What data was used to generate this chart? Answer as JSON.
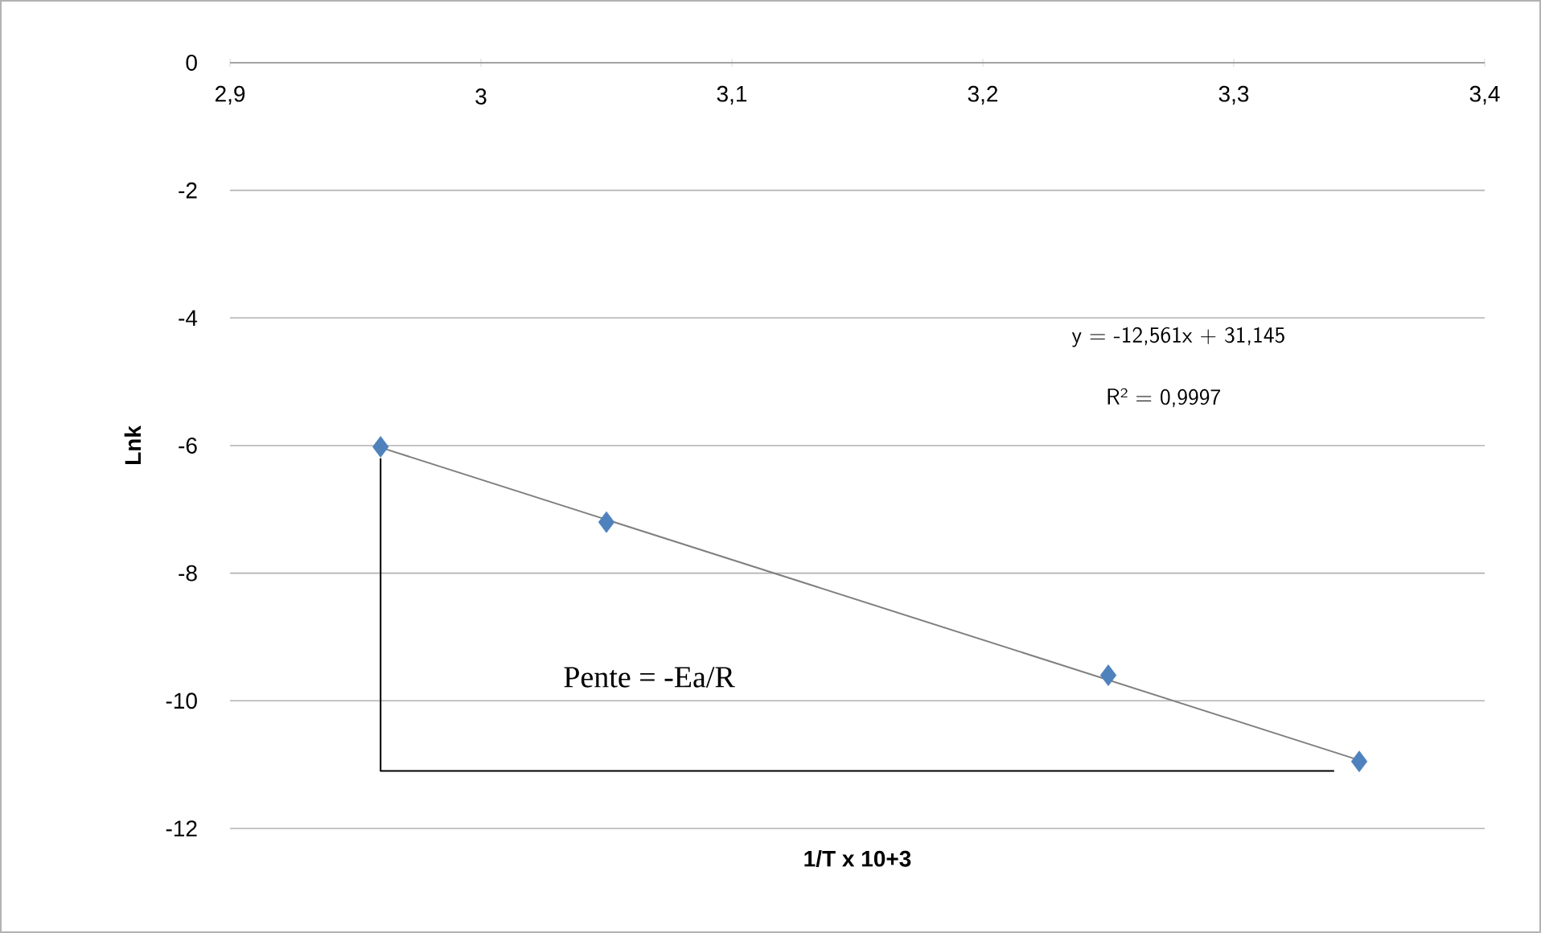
{
  "chart_data": {
    "type": "scatter",
    "xlabel": "1/T x 10+3",
    "ylabel": "Lnk",
    "xlim": [
      2.9,
      3.4
    ],
    "xticks": [
      {
        "value": 2.9,
        "label": "2,9"
      },
      {
        "value": 3,
        "label": "3"
      },
      {
        "value": 3.1,
        "label": "3,1"
      },
      {
        "value": 3.2,
        "label": "3,2"
      },
      {
        "value": 3.3,
        "label": "3,3"
      },
      {
        "value": 3.4,
        "label": "3,4"
      }
    ],
    "ylim": [
      -12,
      0
    ],
    "yticks": [
      0,
      -2,
      -4,
      -6,
      -8,
      -10,
      -12
    ],
    "grid": "y",
    "series": [
      {
        "x": [
          2.96,
          3.05,
          3.25,
          3.35
        ],
        "values": [
          -6.02,
          -7.2,
          -9.6,
          -10.95
        ],
        "color": "#4f81bd",
        "marker": "diamond"
      },
      {
        "type": "line",
        "x": [
          2.96,
          3.35
        ],
        "values": [
          -6.03,
          -10.93
        ],
        "color": "#808080",
        "marker": "none"
      },
      {
        "type": "line",
        "x": [
          2.96,
          2.96,
          3.34
        ],
        "values": [
          -6.2,
          -11.1,
          -11.1
        ],
        "color": "#000000",
        "marker": "none"
      }
    ],
    "annotations": [
      "y = -12,561x + 31,145",
      "R² = 0,9997",
      "Pente = -Ea/R"
    ]
  }
}
